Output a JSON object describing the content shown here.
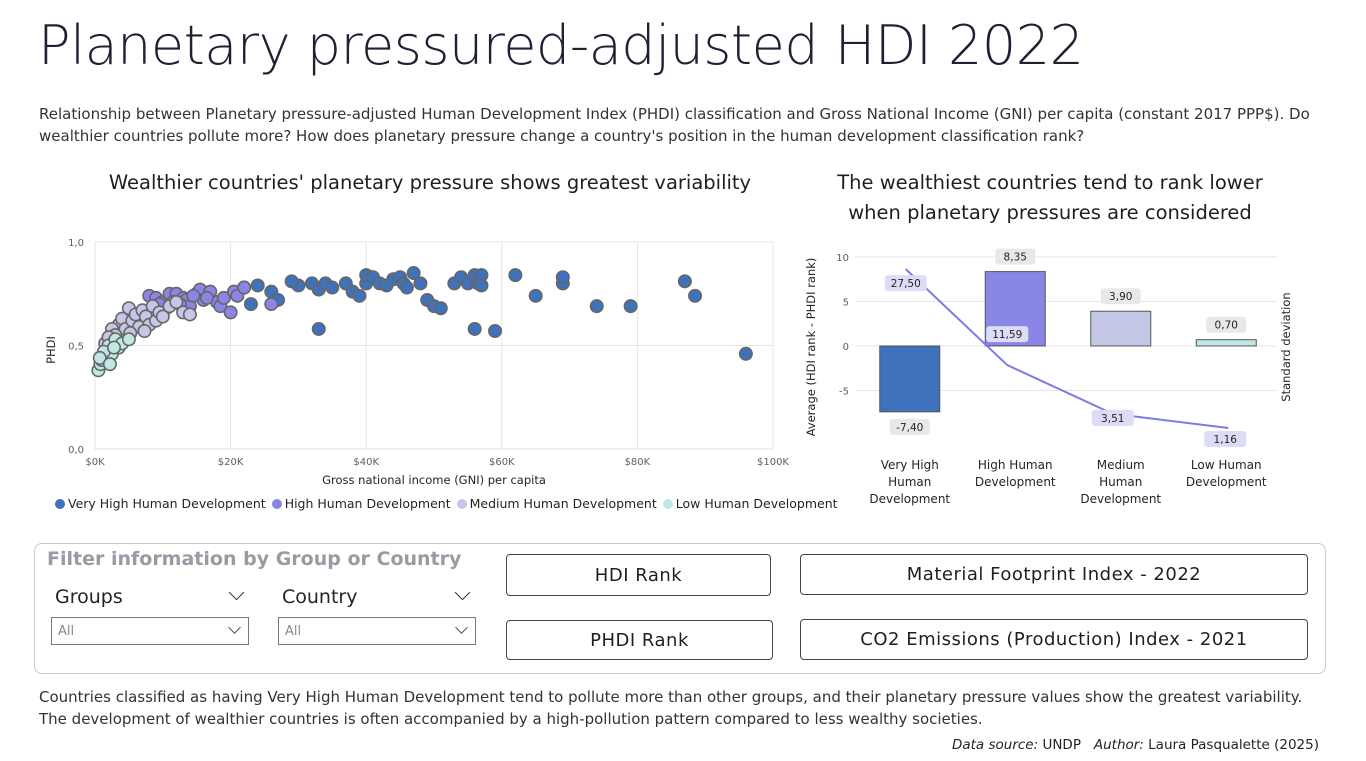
{
  "title": "Planetary pressured-adjusted HDI 2022",
  "subtitle": "Relationship between Planetary pressure-adjusted Human Development Index (PHDI) classification and Gross National Income (GNI) per capita (constant 2017 PPP$). Do wealthier countries pollute more? How does planetary pressure change a country's position in the human development classification rank?",
  "scatter": {
    "title": "Wealthier countries' planetary pressure shows greatest variability",
    "x_label": "Gross national income (GNI) per capita",
    "y_label": "PHDI",
    "x_ticks": [
      "$0K",
      "$20K",
      "$40K",
      "$60K",
      "$80K",
      "$100K"
    ],
    "y_ticks": [
      "0,0",
      "0,5",
      "1,0"
    ]
  },
  "bar": {
    "title_line1": "The wealthiest countries tend to rank lower",
    "title_line2": "when planetary pressures are considered",
    "y_label": "Average (HDI rank - PHDI rank)",
    "y2_label": "Standard deviation",
    "y_ticks": [
      "10",
      "5",
      "0",
      "-5"
    ],
    "categories": [
      [
        "Very High",
        "Human",
        "Development"
      ],
      [
        "High Human",
        "Development"
      ],
      [
        "Medium",
        "Human",
        "Development"
      ],
      [
        "Low Human",
        "Development"
      ]
    ],
    "bar_labels": [
      "-7,40",
      "8,35",
      "3,90",
      "0,70"
    ],
    "line_labels": [
      "27,50",
      "11,59",
      "3,51",
      "1,16"
    ]
  },
  "legend": [
    {
      "label": "Very High Human Development",
      "color": "#3f72bd"
    },
    {
      "label": "High Human Development",
      "color": "#8a86e6"
    },
    {
      "label": "Medium Human Development",
      "color": "#c4c8e6"
    },
    {
      "label": "Low Human Development",
      "color": "#bfe8e4"
    }
  ],
  "chart_data": [
    {
      "type": "scatter",
      "title": "Wealthier countries' planetary pressure shows greatest variability",
      "xlabel": "Gross national income (GNI) per capita",
      "ylabel": "PHDI",
      "xlim": [
        0,
        100000
      ],
      "ylim": [
        0,
        1
      ],
      "grid": true,
      "legend_position": "bottom",
      "series": [
        {
          "name": "Very High Human Development",
          "color": "#3f72bd",
          "points": [
            [
              32000,
              0.8
            ],
            [
              33000,
              0.77
            ],
            [
              34000,
              0.8
            ],
            [
              35000,
              0.78
            ],
            [
              37000,
              0.8
            ],
            [
              38000,
              0.76
            ],
            [
              39000,
              0.74
            ],
            [
              40000,
              0.8
            ],
            [
              40000,
              0.84
            ],
            [
              41000,
              0.83
            ],
            [
              42000,
              0.8
            ],
            [
              43000,
              0.79
            ],
            [
              44000,
              0.82
            ],
            [
              45000,
              0.83
            ],
            [
              45500,
              0.8
            ],
            [
              46000,
              0.78
            ],
            [
              47000,
              0.85
            ],
            [
              48000,
              0.8
            ],
            [
              49000,
              0.72
            ],
            [
              50000,
              0.69
            ],
            [
              51000,
              0.68
            ],
            [
              53000,
              0.8
            ],
            [
              54000,
              0.83
            ],
            [
              55000,
              0.8
            ],
            [
              56000,
              0.84
            ],
            [
              56500,
              0.8
            ],
            [
              56000,
              0.58
            ],
            [
              57000,
              0.84
            ],
            [
              57000,
              0.79
            ],
            [
              59000,
              0.57
            ],
            [
              62000,
              0.84
            ],
            [
              65000,
              0.74
            ],
            [
              69000,
              0.8
            ],
            [
              69000,
              0.83
            ],
            [
              74000,
              0.69
            ],
            [
              79000,
              0.69
            ],
            [
              87000,
              0.81
            ],
            [
              88500,
              0.74
            ],
            [
              96000,
              0.46
            ],
            [
              33000,
              0.58
            ],
            [
              30000,
              0.79
            ],
            [
              29000,
              0.81
            ],
            [
              26000,
              0.76
            ],
            [
              27000,
              0.72
            ],
            [
              24000,
              0.79
            ],
            [
              23000,
              0.7
            ],
            [
              22000,
              0.78
            ]
          ]
        },
        {
          "name": "High Human Development",
          "color": "#8a86e6",
          "points": [
            [
              8000,
              0.74
            ],
            [
              9000,
              0.73
            ],
            [
              10000,
              0.71
            ],
            [
              11000,
              0.75
            ],
            [
              12000,
              0.75
            ],
            [
              13000,
              0.73
            ],
            [
              13500,
              0.72
            ],
            [
              14000,
              0.69
            ],
            [
              15000,
              0.75
            ],
            [
              15500,
              0.77
            ],
            [
              16000,
              0.72
            ],
            [
              17000,
              0.76
            ],
            [
              18000,
              0.71
            ],
            [
              18500,
              0.69
            ],
            [
              19000,
              0.73
            ],
            [
              20000,
              0.66
            ],
            [
              20500,
              0.76
            ],
            [
              21000,
              0.74
            ],
            [
              22000,
              0.78
            ],
            [
              26000,
              0.7
            ],
            [
              10500,
              0.68
            ],
            [
              11500,
              0.71
            ],
            [
              12500,
              0.7
            ],
            [
              9500,
              0.7
            ],
            [
              16500,
              0.73
            ],
            [
              14500,
              0.74
            ]
          ]
        },
        {
          "name": "Medium Human Development",
          "color": "#c4c8e6",
          "points": [
            [
              3500,
              0.6
            ],
            [
              4000,
              0.63
            ],
            [
              4500,
              0.58
            ],
            [
              5000,
              0.68
            ],
            [
              5500,
              0.62
            ],
            [
              6000,
              0.65
            ],
            [
              6500,
              0.59
            ],
            [
              7000,
              0.67
            ],
            [
              7500,
              0.64
            ],
            [
              8000,
              0.6
            ],
            [
              8500,
              0.69
            ],
            [
              9000,
              0.62
            ],
            [
              9500,
              0.66
            ],
            [
              10000,
              0.64
            ],
            [
              11000,
              0.69
            ],
            [
              12000,
              0.71
            ],
            [
              13000,
              0.66
            ],
            [
              14000,
              0.65
            ],
            [
              2500,
              0.58
            ],
            [
              3000,
              0.55
            ],
            [
              1500,
              0.51
            ],
            [
              2000,
              0.54
            ],
            [
              5200,
              0.56
            ],
            [
              7300,
              0.57
            ]
          ]
        },
        {
          "name": "Low Human Development",
          "color": "#bfe8e4",
          "points": [
            [
              500,
              0.38
            ],
            [
              800,
              0.41
            ],
            [
              1000,
              0.43
            ],
            [
              1200,
              0.45
            ],
            [
              1500,
              0.44
            ],
            [
              1800,
              0.48
            ],
            [
              2000,
              0.5
            ],
            [
              2500,
              0.46
            ],
            [
              3000,
              0.53
            ],
            [
              3500,
              0.49
            ],
            [
              4000,
              0.51
            ],
            [
              5000,
              0.53
            ],
            [
              1300,
              0.47
            ],
            [
              700,
              0.44
            ],
            [
              2200,
              0.41
            ],
            [
              2800,
              0.49
            ]
          ]
        }
      ]
    },
    {
      "type": "bar",
      "title": "The wealthiest countries tend to rank lower when planetary pressures are considered",
      "categories": [
        "Very High Human Development",
        "High Human Development",
        "Medium Human Development",
        "Low Human Development"
      ],
      "ylabel": "Average (HDI rank - PHDI rank)",
      "y2label": "Standard deviation",
      "ylim": [
        -10,
        11
      ],
      "y2lim": [
        0,
        31
      ],
      "grid": true,
      "series": [
        {
          "name": "Average (HDI rank - PHDI rank)",
          "type": "bar",
          "axis": "left",
          "values": [
            -7.4,
            8.35,
            3.9,
            0.7
          ],
          "colors": [
            "#3f72bd",
            "#8a86e6",
            "#c4c8e6",
            "#bfe8e4"
          ]
        },
        {
          "name": "Standard deviation",
          "type": "line",
          "axis": "right",
          "values": [
            27.5,
            11.59,
            3.51,
            1.16
          ],
          "color": "#7b7be8"
        }
      ]
    }
  ],
  "filter": {
    "heading": "Filter information by Group or Country",
    "groups_label": "Groups",
    "groups_value": "All",
    "country_label": "Country",
    "country_value": "All"
  },
  "buttons": {
    "hdi_rank": "HDI Rank",
    "phdi_rank": "PHDI Rank",
    "material": "Material Footprint Index - 2022",
    "co2": "CO2 Emissions (Production) Index - 2021"
  },
  "footnote": "Countries classified as having Very High Human Development tend to pollute more than other groups, and their planetary pressure values show the greatest variability. The development of wealthier countries is often accompanied by a high-pollution pattern compared to less wealthy societies.",
  "credits": {
    "source_label": "Data source:",
    "source_value": "UNDP",
    "author_label": "Author:",
    "author_value": "Laura Pasqualette (2025)"
  }
}
